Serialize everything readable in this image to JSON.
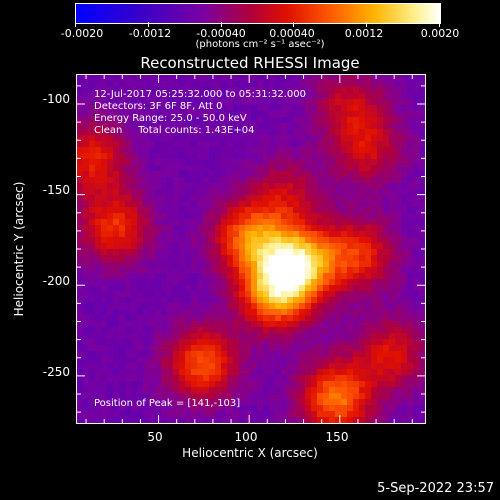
{
  "colorbar": {
    "tick_labels": [
      "-0.0020",
      "-0.0012",
      "-0.00040",
      "0.00040",
      "0.0012",
      "0.0020"
    ],
    "units": "(photons cm⁻² s⁻¹ asec⁻²)",
    "range": [
      -0.002,
      0.002
    ]
  },
  "chart_data": {
    "type": "heatmap",
    "title": "Reconstructed RHESSI Image",
    "xlabel": "Heliocentric X (arcsec)",
    "ylabel": "Heliocentric Y (arcsec)",
    "xlim": [
      5,
      197
    ],
    "ylim": [
      -276,
      -84
    ],
    "xticks": [
      50,
      100,
      150
    ],
    "yticks": [
      -100,
      -150,
      -200,
      -250
    ],
    "colormap": "blue-purple-red-orange-yellow-white",
    "peak": [
      141,
      -103
    ],
    "sources": [
      {
        "x": 127,
        "y": -188,
        "intensity": 1.0
      },
      {
        "x": 100,
        "y": -174,
        "intensity": 0.7
      },
      {
        "x": 114,
        "y": -205,
        "intensity": 0.8
      },
      {
        "x": 160,
        "y": -183,
        "intensity": 0.55
      },
      {
        "x": 74,
        "y": -243,
        "intensity": 0.65
      },
      {
        "x": 148,
        "y": -262,
        "intensity": 0.75
      },
      {
        "x": 178,
        "y": -238,
        "intensity": 0.45
      },
      {
        "x": 26,
        "y": -168,
        "intensity": 0.55
      },
      {
        "x": 14,
        "y": -130,
        "intensity": 0.5
      },
      {
        "x": 120,
        "y": -150,
        "intensity": 0.35
      },
      {
        "x": 165,
        "y": -125,
        "intensity": 0.4
      },
      {
        "x": 155,
        "y": -100,
        "intensity": 0.35
      }
    ],
    "annotations": {
      "time": "12-Jul-2017 05:25:32.000 to 05:31:32.000",
      "detectors": "Detectors: 3F 6F 8F, Att 0",
      "energy": "Energy Range: 25.0 - 50.0 keV",
      "clean": "Clean     Total counts: 1.43E+04",
      "peak": "Position of Peak = [141,-103]"
    }
  },
  "timestamp": "5-Sep-2022 23:57"
}
